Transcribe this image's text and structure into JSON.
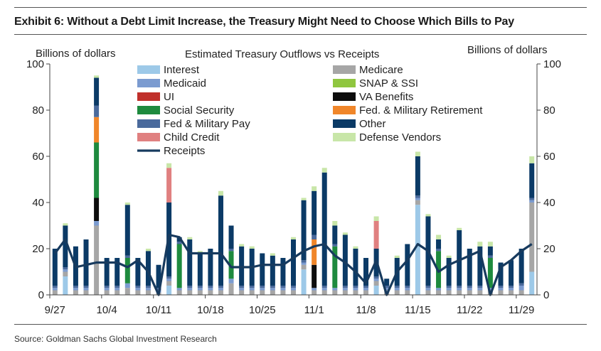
{
  "header": {
    "title": "Exhibit 6: Without a Debt Limit Increase, the Treasury Might Need to Choose Which Bills to Pay"
  },
  "footer": {
    "source": "Source: Goldman Sachs Global Investment Research"
  },
  "chart_data": {
    "type": "bar",
    "stacked": true,
    "title": "Estimated Treasury Outflows vs Receipts",
    "ylabel_left": "Billions of dollars",
    "ylabel_right": "Billions of dollars",
    "ylim": [
      0,
      100
    ],
    "yticks": [
      0,
      20,
      40,
      60,
      80,
      100
    ],
    "grid": false,
    "legend_position": "top",
    "xtick_labels": [
      {
        "label": "9/27",
        "index": 0
      },
      {
        "label": "10/4",
        "index": 5
      },
      {
        "label": "10/11",
        "index": 10
      },
      {
        "label": "10/18",
        "index": 15
      },
      {
        "label": "10/25",
        "index": 20
      },
      {
        "label": "11/1",
        "index": 25
      },
      {
        "label": "11/8",
        "index": 30
      },
      {
        "label": "11/15",
        "index": 35
      },
      {
        "label": "11/22",
        "index": 40
      },
      {
        "label": "11/29",
        "index": 45
      }
    ],
    "categories": [
      "9/27",
      "9/28",
      "9/29",
      "9/30",
      "10/1",
      "10/4",
      "10/5",
      "10/6",
      "10/7",
      "10/8",
      "10/11",
      "10/12",
      "10/13",
      "10/14",
      "10/15",
      "10/18",
      "10/19",
      "10/20",
      "10/21",
      "10/22",
      "10/25",
      "10/26",
      "10/27",
      "10/28",
      "10/29",
      "11/1",
      "11/2",
      "11/3",
      "11/4",
      "11/5",
      "11/8",
      "11/9",
      "11/10",
      "11/11",
      "11/12",
      "11/15",
      "11/16",
      "11/17",
      "11/18",
      "11/19",
      "11/22",
      "11/23",
      "11/24",
      "11/25",
      "11/26",
      "11/29",
      "11/30"
    ],
    "series": [
      {
        "name": "Interest",
        "color": "#9dc9e8",
        "values": [
          0,
          8,
          0,
          0,
          0,
          0,
          0,
          0,
          0,
          0,
          0,
          4,
          0,
          0,
          0,
          0,
          0,
          0,
          0,
          0,
          0,
          0,
          0,
          0,
          11,
          0,
          0,
          0,
          0,
          0,
          0,
          4,
          0,
          0,
          0,
          39,
          0,
          0,
          0,
          0,
          0,
          0,
          0,
          0,
          0,
          0,
          10
        ]
      },
      {
        "name": "Medicare",
        "color": "#a6a6a6",
        "values": [
          2,
          2,
          2,
          2,
          30,
          2,
          2,
          3,
          2,
          2,
          1,
          2,
          2,
          2,
          2,
          2,
          2,
          5,
          2,
          2,
          2,
          2,
          2,
          2,
          2,
          2,
          2,
          2,
          2,
          2,
          2,
          2,
          2,
          2,
          2,
          2,
          2,
          2,
          2,
          2,
          2,
          2,
          2,
          2,
          2,
          2,
          30
        ]
      },
      {
        "name": "Medicaid",
        "color": "#7b9bd0",
        "values": [
          1,
          1,
          1,
          1,
          2,
          1,
          1,
          2,
          1,
          1,
          1,
          1,
          1,
          1,
          1,
          1,
          1,
          2,
          1,
          1,
          1,
          1,
          1,
          1,
          1,
          1,
          1,
          1,
          1,
          1,
          1,
          1,
          1,
          1,
          1,
          1,
          1,
          1,
          1,
          1,
          1,
          1,
          1,
          1,
          1,
          2,
          1
        ]
      },
      {
        "name": "SNAP & SSI",
        "color": "#8fc63f",
        "values": [
          0,
          0,
          0,
          0,
          0,
          0,
          0,
          0,
          0,
          0,
          0,
          0,
          0,
          0,
          0,
          0,
          0,
          0,
          0,
          0,
          0,
          0,
          0,
          0,
          0,
          0,
          0,
          0,
          0,
          0,
          0,
          0,
          0,
          0,
          0,
          0,
          0,
          0,
          0,
          0,
          0,
          0,
          0,
          0,
          0,
          0,
          0
        ]
      },
      {
        "name": "UI",
        "color": "#c0302b",
        "values": [
          0,
          0,
          0,
          0,
          0,
          0,
          0,
          0,
          0,
          0,
          0,
          0,
          0,
          0,
          0,
          0,
          0,
          0,
          0,
          0,
          0,
          0,
          0,
          0,
          0,
          0,
          0,
          0,
          0,
          0,
          0,
          0,
          0,
          0,
          0,
          0,
          0,
          0,
          0,
          0,
          0,
          0,
          0,
          0,
          0,
          0,
          0
        ]
      },
      {
        "name": "VA Benefits",
        "color": "#0d0d0d",
        "values": [
          0,
          0,
          0,
          0,
          10,
          0,
          0,
          0,
          0,
          0,
          0,
          0,
          0,
          0,
          0,
          0,
          0,
          0,
          0,
          0,
          0,
          0,
          0,
          0,
          0,
          10,
          0,
          0,
          0,
          0,
          0,
          0,
          0,
          0,
          0,
          0,
          0,
          0,
          0,
          0,
          0,
          0,
          0,
          0,
          0,
          0,
          0
        ]
      },
      {
        "name": "Social Security",
        "color": "#1e8a3e",
        "values": [
          0,
          0,
          0,
          0,
          24,
          0,
          0,
          11,
          0,
          0,
          0,
          0,
          19,
          0,
          0,
          0,
          0,
          12,
          0,
          0,
          0,
          0,
          0,
          0,
          0,
          0,
          0,
          18,
          0,
          0,
          0,
          0,
          0,
          0,
          0,
          0,
          0,
          16,
          0,
          0,
          0,
          0,
          13,
          0,
          0,
          0,
          0
        ]
      },
      {
        "name": "Fed. & Military Retirement",
        "color": "#f0862a",
        "values": [
          0,
          0,
          0,
          0,
          11,
          0,
          0,
          0,
          0,
          0,
          0,
          0,
          0,
          0,
          0,
          0,
          0,
          0,
          0,
          0,
          0,
          0,
          0,
          0,
          0,
          11,
          0,
          0,
          0,
          0,
          0,
          0,
          0,
          0,
          0,
          0,
          0,
          0,
          0,
          0,
          0,
          0,
          0,
          0,
          0,
          0,
          0
        ]
      },
      {
        "name": "Fed & Military Pay",
        "color": "#4a6a9c",
        "values": [
          1,
          1,
          1,
          1,
          5,
          1,
          1,
          1,
          1,
          1,
          1,
          1,
          1,
          1,
          1,
          1,
          1,
          1,
          1,
          1,
          1,
          1,
          1,
          1,
          1,
          2,
          1,
          1,
          1,
          1,
          1,
          1,
          1,
          1,
          1,
          1,
          1,
          1,
          1,
          1,
          1,
          1,
          1,
          1,
          1,
          1,
          1
        ]
      },
      {
        "name": "Other",
        "color": "#0b3a66",
        "values": [
          16,
          18,
          17,
          20,
          12,
          12,
          12,
          22,
          12,
          15,
          10,
          32,
          2,
          20,
          14,
          16,
          39,
          10,
          17,
          16,
          14,
          13,
          12,
          20,
          26,
          19,
          49,
          8,
          22,
          16,
          12,
          12,
          3,
          12,
          18,
          17,
          30,
          4,
          12,
          24,
          16,
          17,
          4,
          10,
          11,
          15,
          15
        ]
      },
      {
        "name": "Child Credit",
        "color": "#e08080",
        "values": [
          0,
          0,
          0,
          0,
          0,
          0,
          0,
          0,
          0,
          0,
          0,
          15,
          0,
          0,
          0,
          0,
          0,
          0,
          0,
          0,
          0,
          0,
          0,
          0,
          0,
          0,
          0,
          0,
          0,
          0,
          0,
          12,
          0,
          0,
          0,
          0,
          0,
          0,
          0,
          0,
          0,
          0,
          0,
          0,
          0,
          0,
          0
        ]
      },
      {
        "name": "Defense Vendors",
        "color": "#c8e6a8",
        "values": [
          0,
          1,
          0,
          0,
          1,
          0,
          0,
          1,
          0,
          1,
          0,
          2,
          0,
          1,
          1,
          0,
          2,
          0,
          1,
          1,
          0,
          1,
          0,
          1,
          1,
          2,
          2,
          2,
          1,
          1,
          0,
          2,
          0,
          1,
          0,
          2,
          1,
          2,
          1,
          1,
          0,
          2,
          2,
          0,
          0,
          0,
          3
        ]
      }
    ],
    "receipts": {
      "name": "Receipts",
      "color": "#173a5e",
      "values": [
        18,
        24,
        12,
        13,
        14,
        14,
        14,
        12,
        15,
        10,
        0,
        26,
        25,
        18,
        18,
        18,
        18,
        12,
        12,
        12,
        13,
        13,
        13,
        16,
        19,
        21,
        22,
        17,
        14,
        10,
        5,
        15,
        0,
        10,
        15,
        22,
        19,
        10,
        13,
        15,
        17,
        19,
        0,
        12,
        15,
        19,
        22
      ]
    },
    "legend": [
      {
        "label": "Interest",
        "color": "#9dc9e8",
        "kind": "bar",
        "col": 0,
        "row": 0
      },
      {
        "label": "Medicaid",
        "color": "#7b9bd0",
        "kind": "bar",
        "col": 0,
        "row": 1
      },
      {
        "label": "UI",
        "color": "#c0302b",
        "kind": "bar",
        "col": 0,
        "row": 2
      },
      {
        "label": "Social Security",
        "color": "#1e8a3e",
        "kind": "bar",
        "col": 0,
        "row": 3
      },
      {
        "label": "Fed & Military Pay",
        "color": "#4a6a9c",
        "kind": "bar",
        "col": 0,
        "row": 4
      },
      {
        "label": "Child Credit",
        "color": "#e08080",
        "kind": "bar",
        "col": 0,
        "row": 5
      },
      {
        "label": "Receipts",
        "color": "#173a5e",
        "kind": "line",
        "col": 0,
        "row": 6
      },
      {
        "label": "Medicare",
        "color": "#a6a6a6",
        "kind": "bar",
        "col": 1,
        "row": 0
      },
      {
        "label": "SNAP & SSI",
        "color": "#8fc63f",
        "kind": "bar",
        "col": 1,
        "row": 1
      },
      {
        "label": "VA Benefits",
        "color": "#0d0d0d",
        "kind": "bar",
        "col": 1,
        "row": 2
      },
      {
        "label": "Fed. & Military Retirement",
        "color": "#f0862a",
        "kind": "bar",
        "col": 1,
        "row": 3
      },
      {
        "label": "Other",
        "color": "#0b3a66",
        "kind": "bar",
        "col": 1,
        "row": 4
      },
      {
        "label": "Defense Vendors",
        "color": "#c8e6a8",
        "kind": "bar",
        "col": 1,
        "row": 5
      }
    ]
  }
}
